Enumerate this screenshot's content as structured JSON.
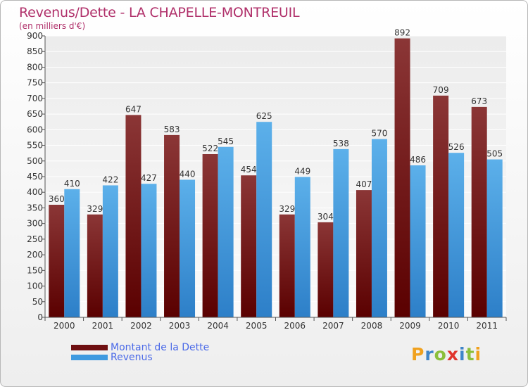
{
  "title": "Revenus/Dette - LA CHAPELLE-MONTREUIL",
  "subtitle": "(en milliers d'€)",
  "legend": {
    "items": [
      {
        "label": "Montant de la Dette",
        "color": "#6e0f11"
      },
      {
        "label": "Revenus",
        "color": "#3f9ae0"
      }
    ]
  },
  "brand": {
    "letters": [
      "P",
      "r",
      "o",
      "x",
      "i",
      "t",
      "i"
    ],
    "colors": [
      "#f0a11e",
      "#3f85c9",
      "#8bbf3b",
      "#e0342c",
      "#3f85c9",
      "#8bbf3b",
      "#f0a11e"
    ]
  },
  "chart_data": {
    "type": "bar",
    "title": "Revenus/Dette - LA CHAPELLE-MONTREUIL",
    "subtitle": "(en milliers d'€)",
    "xlabel": "",
    "ylabel": "",
    "ylim": [
      0,
      900
    ],
    "yticks": [
      0,
      50,
      100,
      150,
      200,
      250,
      300,
      350,
      400,
      450,
      500,
      550,
      600,
      650,
      700,
      750,
      800,
      850,
      900
    ],
    "grid": true,
    "legend_position": "bottom-left",
    "categories": [
      "2000",
      "2001",
      "2002",
      "2003",
      "2004",
      "2005",
      "2006",
      "2007",
      "2008",
      "2009",
      "2010",
      "2011"
    ],
    "series": [
      {
        "name": "Montant de la Dette",
        "color": "#6e0f11",
        "values": [
          360,
          329,
          647,
          583,
          522,
          454,
          329,
          304,
          407,
          892,
          709,
          673
        ]
      },
      {
        "name": "Revenus",
        "color": "#3f9ae0",
        "values": [
          410,
          422,
          427,
          440,
          545,
          625,
          449,
          538,
          570,
          486,
          526,
          505
        ]
      }
    ]
  }
}
